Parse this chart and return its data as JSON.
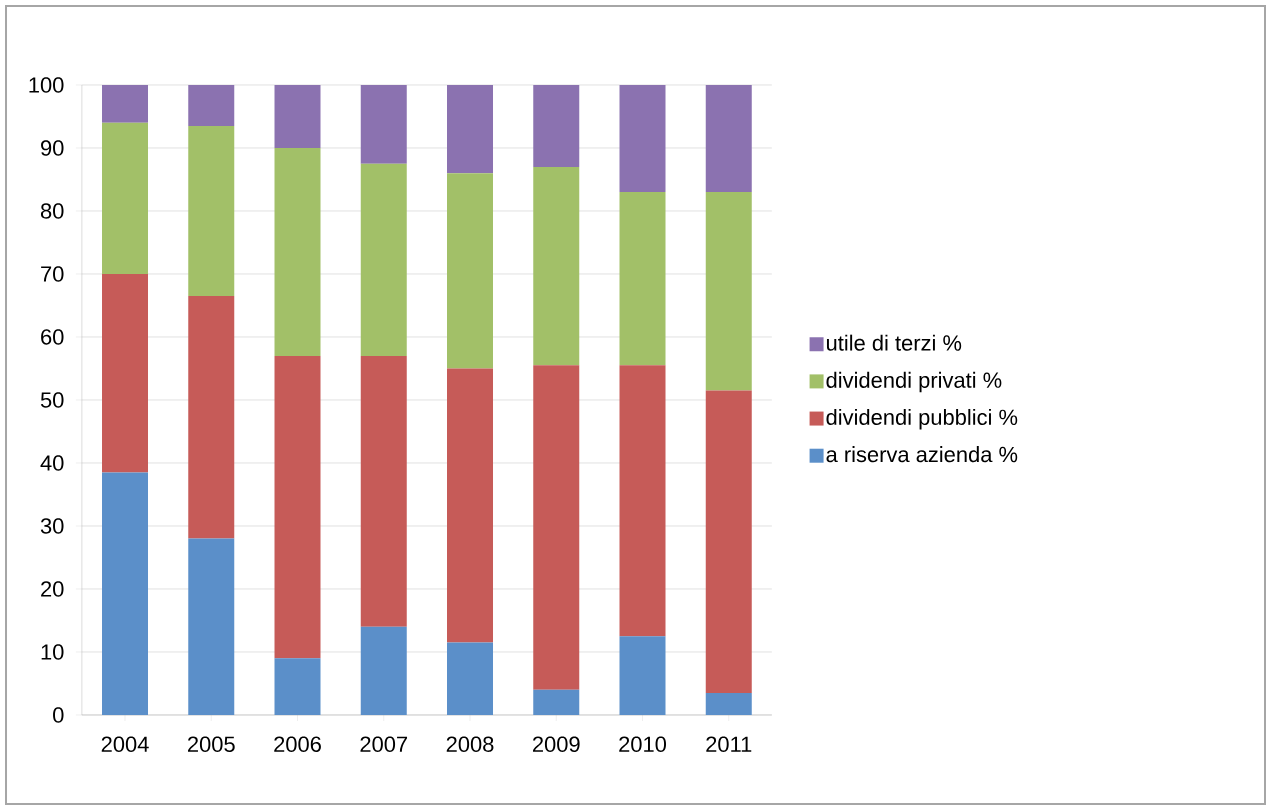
{
  "chart_data": {
    "type": "bar",
    "stacked": true,
    "categories": [
      "2004",
      "2005",
      "2006",
      "2007",
      "2008",
      "2009",
      "2010",
      "2011"
    ],
    "series": [
      {
        "name": "a riserva azienda %",
        "color": "#5b8fc9",
        "values": [
          38.5,
          28,
          9,
          14,
          11.5,
          4,
          12.5,
          3.5
        ]
      },
      {
        "name": "dividendi pubblici %",
        "color": "#c65b58",
        "values": [
          31.5,
          38.5,
          48,
          43,
          43.5,
          51.5,
          43,
          48
        ]
      },
      {
        "name": "dividendi privati %",
        "color": "#a2c068",
        "values": [
          24,
          27,
          33,
          30.5,
          31,
          31.5,
          27.5,
          31.5
        ]
      },
      {
        "name": "utile di terzi %",
        "color": "#8b72b0",
        "values": [
          6,
          6.5,
          10,
          12.5,
          14,
          13,
          17,
          17
        ]
      }
    ],
    "ylim": [
      0,
      100
    ],
    "yticks": [
      0,
      10,
      20,
      30,
      40,
      50,
      60,
      70,
      80,
      90,
      100
    ],
    "grid": "y",
    "legend": "right"
  }
}
